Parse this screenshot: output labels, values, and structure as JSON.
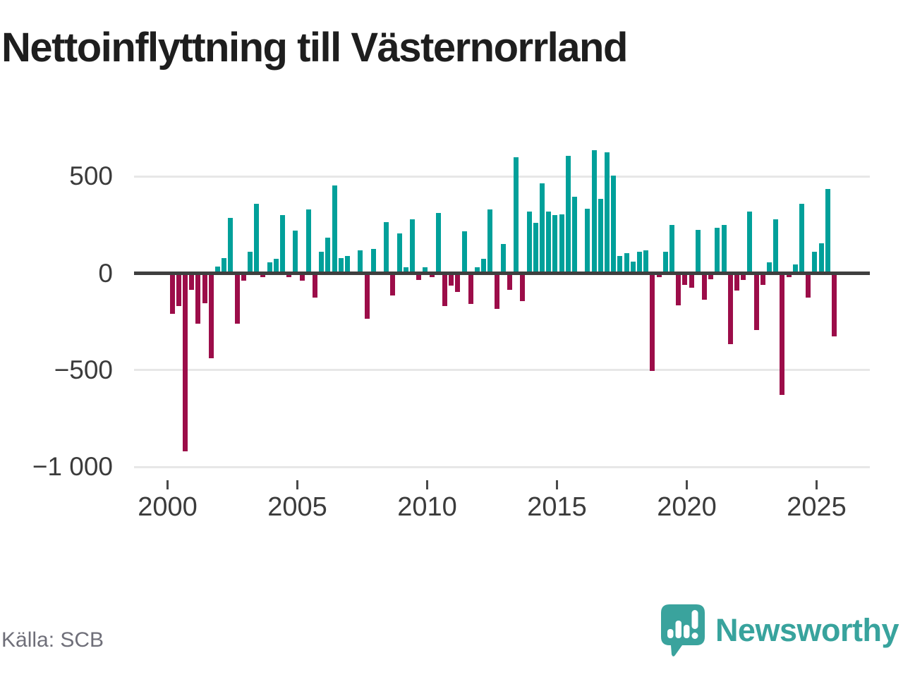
{
  "title": "Nettoinflyttning till Västernorrland",
  "source": "Källa: SCB",
  "brand": {
    "name": "Newsworthy"
  },
  "colors": {
    "positive": "#00a09a",
    "negative": "#9c0d49",
    "axis": "#3f3f3f",
    "gridline": "#e7e7e7",
    "tick_text": "#3b3b3b",
    "muted_text": "#6f6f79",
    "brand_teal": "#3aa39d",
    "title_text": "#1e1e1e"
  },
  "chart_data": {
    "type": "bar",
    "title": "Nettoinflyttning till Västernorrland",
    "xlabel": "",
    "ylabel": "",
    "period_start": "2000-Q1",
    "period_end": "2025-Q3",
    "frequency": "quarterly",
    "ylim": [
      -1050,
      700
    ],
    "grid": true,
    "legend": "none",
    "yticks": [
      {
        "label": "500",
        "value": 500
      },
      {
        "label": "0",
        "value": 0
      },
      {
        "label": "−500",
        "value": -500
      },
      {
        "label": "−1 000",
        "value": -1000
      }
    ],
    "xticks": [
      2000,
      2005,
      2010,
      2015,
      2020,
      2025
    ],
    "values": [
      -210,
      -170,
      -920,
      -85,
      -260,
      -155,
      -440,
      35,
      80,
      285,
      -260,
      -40,
      110,
      360,
      -20,
      55,
      75,
      300,
      -20,
      220,
      -40,
      330,
      -125,
      110,
      185,
      455,
      80,
      90,
      0,
      120,
      -235,
      125,
      0,
      265,
      -115,
      205,
      30,
      280,
      -35,
      30,
      -20,
      310,
      -170,
      -65,
      -95,
      215,
      -160,
      30,
      75,
      330,
      -185,
      150,
      -85,
      600,
      -145,
      320,
      260,
      465,
      320,
      300,
      305,
      605,
      395,
      0,
      335,
      635,
      385,
      625,
      505,
      90,
      105,
      60,
      110,
      120,
      -505,
      -20,
      110,
      250,
      -165,
      -60,
      -75,
      225,
      -135,
      -30,
      235,
      250,
      -365,
      -90,
      -35,
      320,
      -295,
      -60,
      55,
      280,
      -630,
      -20,
      45,
      360,
      -125,
      110,
      155,
      435,
      -325
    ]
  }
}
